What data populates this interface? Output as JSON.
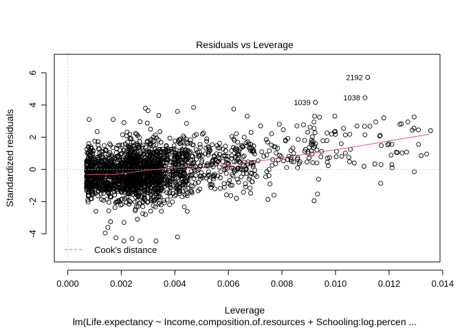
{
  "chart_data": {
    "type": "scatter",
    "title": "Residuals vs Leverage",
    "xlabel": "Leverage",
    "ylabel": "Standardized residuals",
    "subtitle": "lm(Life.expectancy ~ Income.composition.of.resources + Schooling:log.percen ...",
    "xlim": [
      -0.0005,
      0.0139
    ],
    "ylim": [
      -5.75,
      7.15
    ],
    "xticks": [
      "0.000",
      "0.002",
      "0.004",
      "0.006",
      "0.008",
      "0.010",
      "0.012",
      "0.014"
    ],
    "xtick_values": [
      0,
      0.002,
      0.004,
      0.006,
      0.008,
      0.01,
      0.012,
      0.014
    ],
    "yticks": [
      "-4",
      "-2",
      "0",
      "2",
      "4",
      "6"
    ],
    "ytick_values": [
      -4,
      -2,
      0,
      2,
      4,
      6
    ],
    "legend": {
      "label": "Cook's distance",
      "position": "bottom-left"
    },
    "colors": {
      "points": "#000000",
      "smoother": "#DF536B",
      "reference": "#BEBEBE"
    },
    "smoother": {
      "x": [
        0.0007,
        0.0018,
        0.003,
        0.004,
        0.005,
        0.006,
        0.007,
        0.008,
        0.009,
        0.01,
        0.011,
        0.012,
        0.0135
      ],
      "y": [
        -0.32,
        -0.3,
        -0.05,
        0.12,
        0.22,
        0.3,
        0.48,
        0.72,
        0.98,
        1.22,
        1.48,
        1.78,
        2.18
      ]
    },
    "labeled_points": [
      {
        "label": "2192",
        "x": 0.0112,
        "y": 5.72
      },
      {
        "label": "1039",
        "x": 0.00925,
        "y": 4.16
      },
      {
        "label": "1038",
        "x": 0.0111,
        "y": 4.45
      }
    ],
    "point_groups": [
      {
        "n": 1150,
        "xmin": 0.0007,
        "xmax": 0.0035,
        "ymean": -0.35,
        "ysd": 0.85
      },
      {
        "n": 600,
        "xmin": 0.0022,
        "xmax": 0.0045,
        "ymean": 0.0,
        "ysd": 0.95
      },
      {
        "n": 260,
        "xmin": 0.004,
        "xmax": 0.007,
        "ymean": 0.3,
        "ysd": 0.9
      },
      {
        "n": 110,
        "xmin": 0.006,
        "xmax": 0.0095,
        "ymean": 0.8,
        "ysd": 0.9
      },
      {
        "n": 55,
        "xmin": 0.009,
        "xmax": 0.0136,
        "ymean": 1.4,
        "ysd": 1.1
      }
    ],
    "outliers": [
      [
        0.0008,
        3.1
      ],
      [
        0.0011,
        2.35
      ],
      [
        0.0017,
        3.1
      ],
      [
        0.0021,
        2.9
      ],
      [
        0.0029,
        3.8
      ],
      [
        0.003,
        3.65
      ],
      [
        0.0034,
        3.35
      ],
      [
        0.0041,
        3.6
      ],
      [
        0.0047,
        3.85
      ],
      [
        0.0062,
        3.75
      ],
      [
        0.0067,
        3.3
      ],
      [
        0.0072,
        2.7
      ],
      [
        0.0079,
        2.8
      ],
      [
        0.0092,
        2.55
      ],
      [
        0.0094,
        3.25
      ],
      [
        0.0103,
        2.55
      ],
      [
        0.0108,
        2.7
      ],
      [
        0.0115,
        2.95
      ],
      [
        0.0118,
        3.2
      ],
      [
        0.0124,
        2.8
      ],
      [
        0.0127,
        2.95
      ],
      [
        0.0111,
        2.15
      ],
      [
        0.0121,
        1.55
      ],
      [
        0.0131,
        1.55
      ],
      [
        0.0134,
        0.95
      ],
      [
        0.0132,
        0.85
      ],
      [
        0.0121,
        0.3
      ],
      [
        0.0117,
        0.3
      ],
      [
        0.0107,
        0.4
      ],
      [
        0.0105,
        0.75
      ],
      [
        0.0097,
        0.7
      ],
      [
        0.0092,
        -1.95
      ],
      [
        0.0077,
        -1.6
      ],
      [
        0.0063,
        -1.8
      ],
      [
        0.0015,
        -3.6
      ],
      [
        0.0016,
        -3.25
      ],
      [
        0.0021,
        -3.3
      ],
      [
        0.0026,
        -3.1
      ],
      [
        0.0028,
        -2.75
      ],
      [
        0.0029,
        -2.8
      ],
      [
        0.0018,
        -4.25
      ],
      [
        0.0021,
        -4.45
      ],
      [
        0.0024,
        -4.3
      ],
      [
        0.0027,
        -4.45
      ],
      [
        0.0033,
        -4.45
      ],
      [
        0.0041,
        -4.2
      ],
      [
        0.0014,
        -3.95
      ],
      [
        0.0007,
        0.5
      ]
    ]
  }
}
